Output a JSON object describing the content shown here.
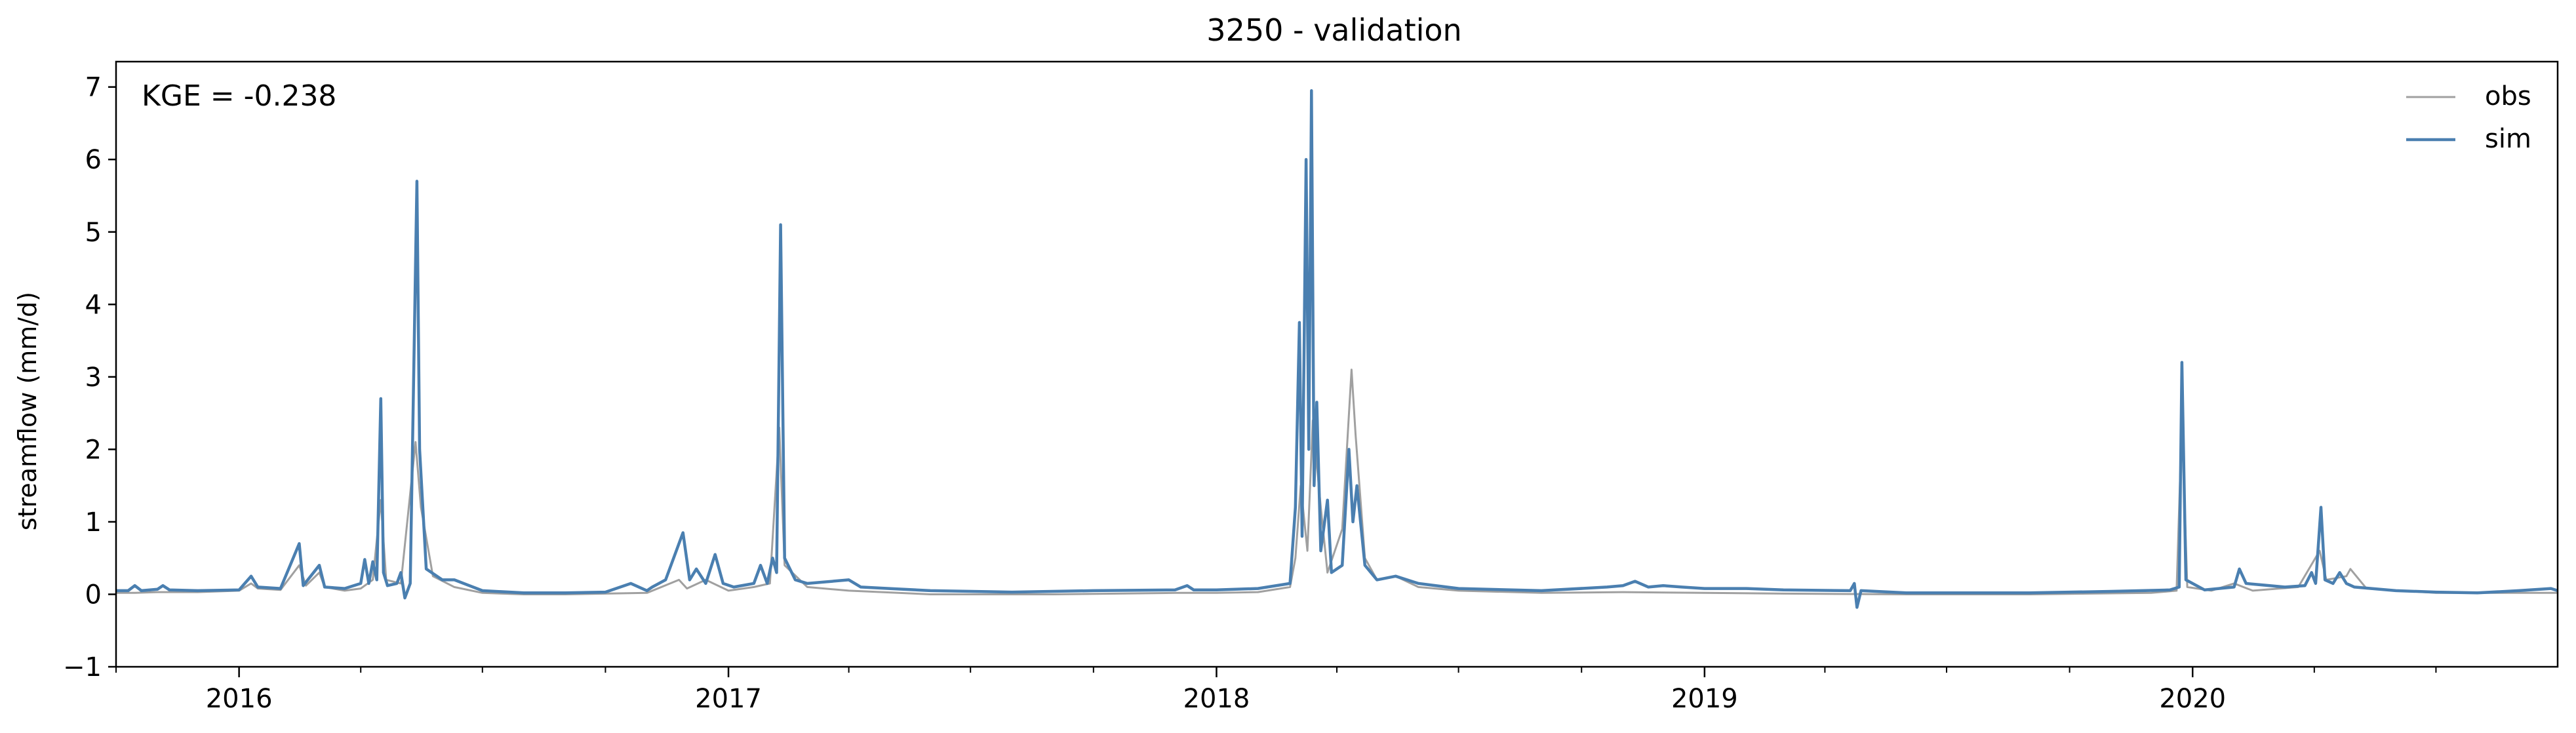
{
  "chart_data": {
    "type": "line",
    "title": "3250 - validation",
    "ylabel": "streamflow (mm/d)",
    "xlabel": "",
    "ylim": [
      -1,
      7.35
    ],
    "xlim": [
      "2015-10-01",
      "2020-09-30"
    ],
    "y_ticks": [
      -1,
      0,
      1,
      2,
      3,
      4,
      5,
      6,
      7
    ],
    "x_ticks": [
      {
        "label": "2016",
        "date": "2016-01-01"
      },
      {
        "label": "2017",
        "date": "2017-01-01"
      },
      {
        "label": "2018",
        "date": "2018-01-01"
      },
      {
        "label": "2019",
        "date": "2019-01-01"
      },
      {
        "label": "2020",
        "date": "2020-01-01"
      }
    ],
    "annotation": "KGE = -0.238",
    "legend": {
      "position": "top-right"
    },
    "grid": false,
    "series": [
      {
        "name": "obs",
        "color": "#a0a0a0",
        "points": [
          [
            "2015-10-01",
            0.02
          ],
          [
            "2015-10-15",
            0.02
          ],
          [
            "2015-11-01",
            0.03
          ],
          [
            "2015-12-01",
            0.03
          ],
          [
            "2016-01-01",
            0.05
          ],
          [
            "2016-01-10",
            0.15
          ],
          [
            "2016-01-15",
            0.08
          ],
          [
            "2016-02-01",
            0.06
          ],
          [
            "2016-02-15",
            0.4
          ],
          [
            "2016-02-20",
            0.12
          ],
          [
            "2016-03-01",
            0.3
          ],
          [
            "2016-03-05",
            0.1
          ],
          [
            "2016-03-20",
            0.05
          ],
          [
            "2016-04-01",
            0.08
          ],
          [
            "2016-04-10",
            0.2
          ],
          [
            "2016-04-16",
            1.3
          ],
          [
            "2016-04-20",
            0.2
          ],
          [
            "2016-05-01",
            0.15
          ],
          [
            "2016-05-12",
            2.1
          ],
          [
            "2016-05-16",
            1.2
          ],
          [
            "2016-05-25",
            0.25
          ],
          [
            "2016-06-10",
            0.1
          ],
          [
            "2016-07-01",
            0.02
          ],
          [
            "2016-08-01",
            0.0
          ],
          [
            "2016-09-01",
            0.0
          ],
          [
            "2016-10-01",
            0.01
          ],
          [
            "2016-11-01",
            0.02
          ],
          [
            "2016-11-25",
            0.2
          ],
          [
            "2016-12-01",
            0.08
          ],
          [
            "2016-12-15",
            0.2
          ],
          [
            "2017-01-01",
            0.05
          ],
          [
            "2017-01-20",
            0.1
          ],
          [
            "2017-02-01",
            0.15
          ],
          [
            "2017-02-08",
            2.3
          ],
          [
            "2017-02-12",
            0.4
          ],
          [
            "2017-03-01",
            0.1
          ],
          [
            "2017-04-01",
            0.05
          ],
          [
            "2017-06-01",
            0.0
          ],
          [
            "2017-09-01",
            0.0
          ],
          [
            "2017-12-01",
            0.02
          ],
          [
            "2018-01-01",
            0.02
          ],
          [
            "2018-02-01",
            0.03
          ],
          [
            "2018-02-25",
            0.1
          ],
          [
            "2018-03-01",
            0.5
          ],
          [
            "2018-03-05",
            1.5
          ],
          [
            "2018-03-10",
            0.6
          ],
          [
            "2018-03-14",
            2.4
          ],
          [
            "2018-03-20",
            1.2
          ],
          [
            "2018-03-25",
            0.3
          ],
          [
            "2018-04-05",
            0.9
          ],
          [
            "2018-04-12",
            3.1
          ],
          [
            "2018-04-15",
            2.2
          ],
          [
            "2018-04-22",
            0.5
          ],
          [
            "2018-05-01",
            0.2
          ],
          [
            "2018-05-15",
            0.25
          ],
          [
            "2018-06-01",
            0.1
          ],
          [
            "2018-07-01",
            0.05
          ],
          [
            "2018-09-01",
            0.02
          ],
          [
            "2018-11-01",
            0.03
          ],
          [
            "2019-01-01",
            0.02
          ],
          [
            "2019-03-01",
            0.01
          ],
          [
            "2019-06-01",
            0.0
          ],
          [
            "2019-09-01",
            0.0
          ],
          [
            "2019-12-01",
            0.02
          ],
          [
            "2019-12-20",
            0.05
          ],
          [
            "2019-12-24",
            2.4
          ],
          [
            "2019-12-28",
            0.1
          ],
          [
            "2020-01-15",
            0.05
          ],
          [
            "2020-02-01",
            0.15
          ],
          [
            "2020-02-15",
            0.05
          ],
          [
            "2020-03-20",
            0.1
          ],
          [
            "2020-04-05",
            0.6
          ],
          [
            "2020-04-10",
            0.2
          ],
          [
            "2020-04-25",
            0.25
          ],
          [
            "2020-04-28",
            0.35
          ],
          [
            "2020-05-10",
            0.08
          ],
          [
            "2020-07-01",
            0.02
          ],
          [
            "2020-09-30",
            0.02
          ]
        ]
      },
      {
        "name": "sim",
        "color": "#4a7fb0",
        "points": [
          [
            "2015-10-01",
            0.05
          ],
          [
            "2015-10-10",
            0.05
          ],
          [
            "2015-10-15",
            0.12
          ],
          [
            "2015-10-20",
            0.05
          ],
          [
            "2015-11-01",
            0.07
          ],
          [
            "2015-11-05",
            0.12
          ],
          [
            "2015-11-10",
            0.06
          ],
          [
            "2015-12-01",
            0.05
          ],
          [
            "2016-01-01",
            0.06
          ],
          [
            "2016-01-10",
            0.25
          ],
          [
            "2016-01-15",
            0.1
          ],
          [
            "2016-02-01",
            0.08
          ],
          [
            "2016-02-15",
            0.7
          ],
          [
            "2016-02-18",
            0.12
          ],
          [
            "2016-03-01",
            0.4
          ],
          [
            "2016-03-05",
            0.1
          ],
          [
            "2016-03-20",
            0.08
          ],
          [
            "2016-04-01",
            0.15
          ],
          [
            "2016-04-04",
            0.48
          ],
          [
            "2016-04-07",
            0.15
          ],
          [
            "2016-04-10",
            0.45
          ],
          [
            "2016-04-13",
            0.2
          ],
          [
            "2016-04-16",
            2.7
          ],
          [
            "2016-04-18",
            0.3
          ],
          [
            "2016-04-21",
            0.12
          ],
          [
            "2016-04-28",
            0.15
          ],
          [
            "2016-05-01",
            0.3
          ],
          [
            "2016-05-04",
            -0.05
          ],
          [
            "2016-05-08",
            0.15
          ],
          [
            "2016-05-13",
            5.7
          ],
          [
            "2016-05-15",
            2.0
          ],
          [
            "2016-05-20",
            0.35
          ],
          [
            "2016-06-01",
            0.2
          ],
          [
            "2016-06-10",
            0.2
          ],
          [
            "2016-07-01",
            0.05
          ],
          [
            "2016-08-01",
            0.02
          ],
          [
            "2016-09-01",
            0.02
          ],
          [
            "2016-10-01",
            0.03
          ],
          [
            "2016-10-20",
            0.15
          ],
          [
            "2016-11-01",
            0.05
          ],
          [
            "2016-11-05",
            0.1
          ],
          [
            "2016-11-15",
            0.2
          ],
          [
            "2016-11-28",
            0.85
          ],
          [
            "2016-12-03",
            0.2
          ],
          [
            "2016-12-08",
            0.35
          ],
          [
            "2016-12-15",
            0.15
          ],
          [
            "2016-12-22",
            0.55
          ],
          [
            "2016-12-28",
            0.15
          ],
          [
            "2017-01-05",
            0.1
          ],
          [
            "2017-01-20",
            0.15
          ],
          [
            "2017-01-25",
            0.4
          ],
          [
            "2017-01-30",
            0.15
          ],
          [
            "2017-02-03",
            0.5
          ],
          [
            "2017-02-06",
            0.3
          ],
          [
            "2017-02-09",
            5.1
          ],
          [
            "2017-02-12",
            0.5
          ],
          [
            "2017-02-20",
            0.2
          ],
          [
            "2017-03-01",
            0.15
          ],
          [
            "2017-04-01",
            0.2
          ],
          [
            "2017-04-10",
            0.1
          ],
          [
            "2017-05-01",
            0.08
          ],
          [
            "2017-06-01",
            0.05
          ],
          [
            "2017-08-01",
            0.03
          ],
          [
            "2017-10-01",
            0.05
          ],
          [
            "2017-12-01",
            0.06
          ],
          [
            "2017-12-10",
            0.12
          ],
          [
            "2017-12-15",
            0.06
          ],
          [
            "2018-01-01",
            0.06
          ],
          [
            "2018-02-01",
            0.08
          ],
          [
            "2018-02-25",
            0.15
          ],
          [
            "2018-03-01",
            1.2
          ],
          [
            "2018-03-04",
            3.75
          ],
          [
            "2018-03-06",
            0.8
          ],
          [
            "2018-03-09",
            6.0
          ],
          [
            "2018-03-11",
            2.0
          ],
          [
            "2018-03-13",
            6.95
          ],
          [
            "2018-03-15",
            1.5
          ],
          [
            "2018-03-17",
            2.65
          ],
          [
            "2018-03-20",
            0.6
          ],
          [
            "2018-03-25",
            1.3
          ],
          [
            "2018-03-28",
            0.3
          ],
          [
            "2018-04-05",
            0.4
          ],
          [
            "2018-04-10",
            2.0
          ],
          [
            "2018-04-13",
            1.0
          ],
          [
            "2018-04-16",
            1.5
          ],
          [
            "2018-04-22",
            0.4
          ],
          [
            "2018-05-01",
            0.2
          ],
          [
            "2018-05-15",
            0.25
          ],
          [
            "2018-06-01",
            0.15
          ],
          [
            "2018-07-01",
            0.08
          ],
          [
            "2018-09-01",
            0.05
          ],
          [
            "2018-10-20",
            0.1
          ],
          [
            "2018-11-01",
            0.12
          ],
          [
            "2018-11-10",
            0.18
          ],
          [
            "2018-11-20",
            0.1
          ],
          [
            "2018-12-01",
            0.12
          ],
          [
            "2018-12-15",
            0.1
          ],
          [
            "2019-01-01",
            0.08
          ],
          [
            "2019-02-01",
            0.08
          ],
          [
            "2019-03-01",
            0.06
          ],
          [
            "2019-04-20",
            0.05
          ],
          [
            "2019-04-23",
            0.15
          ],
          [
            "2019-04-25",
            -0.18
          ],
          [
            "2019-04-28",
            0.05
          ],
          [
            "2019-06-01",
            0.02
          ],
          [
            "2019-09-01",
            0.02
          ],
          [
            "2019-11-01",
            0.04
          ],
          [
            "2019-12-15",
            0.06
          ],
          [
            "2019-12-22",
            0.1
          ],
          [
            "2019-12-24",
            3.2
          ],
          [
            "2019-12-27",
            0.2
          ],
          [
            "2020-01-10",
            0.06
          ],
          [
            "2020-02-01",
            0.1
          ],
          [
            "2020-02-05",
            0.35
          ],
          [
            "2020-02-10",
            0.15
          ],
          [
            "2020-03-10",
            0.1
          ],
          [
            "2020-03-25",
            0.12
          ],
          [
            "2020-03-30",
            0.3
          ],
          [
            "2020-04-02",
            0.15
          ],
          [
            "2020-04-06",
            1.2
          ],
          [
            "2020-04-09",
            0.2
          ],
          [
            "2020-04-15",
            0.15
          ],
          [
            "2020-04-20",
            0.3
          ],
          [
            "2020-04-25",
            0.15
          ],
          [
            "2020-05-01",
            0.1
          ],
          [
            "2020-06-01",
            0.05
          ],
          [
            "2020-07-01",
            0.03
          ],
          [
            "2020-08-01",
            0.02
          ],
          [
            "2020-09-01",
            0.05
          ],
          [
            "2020-09-25",
            0.08
          ],
          [
            "2020-09-30",
            0.05
          ]
        ]
      }
    ]
  }
}
